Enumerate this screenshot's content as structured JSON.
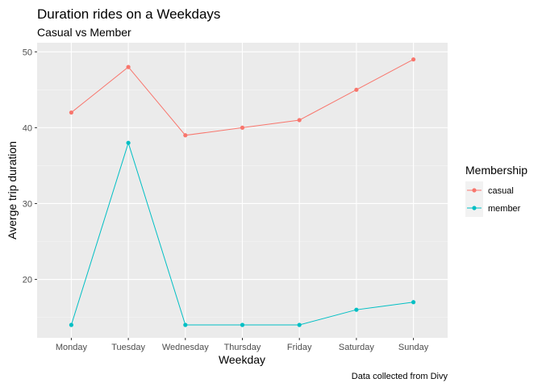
{
  "chart_data": {
    "type": "line",
    "title": "Duration rides on a Weekdays",
    "subtitle": "Casual vs Member",
    "xlabel": "Weekday",
    "ylabel": "Averge trip duration",
    "caption": "Data collected from Divy",
    "categories": [
      "Monday",
      "Tuesday",
      "Wednesday",
      "Thursday",
      "Friday",
      "Saturday",
      "Sunday"
    ],
    "ylim": [
      12.3,
      51.2
    ],
    "yticks": [
      20,
      30,
      40,
      50
    ],
    "grid": true,
    "legend": {
      "title": "Membership",
      "position": "right"
    },
    "series": [
      {
        "name": "casual",
        "color": "#F8766D",
        "values": [
          42,
          48,
          39,
          40,
          41,
          45,
          49
        ]
      },
      {
        "name": "member",
        "color": "#00BFC4",
        "values": [
          14,
          38,
          14,
          14,
          14,
          16,
          17
        ]
      }
    ]
  }
}
